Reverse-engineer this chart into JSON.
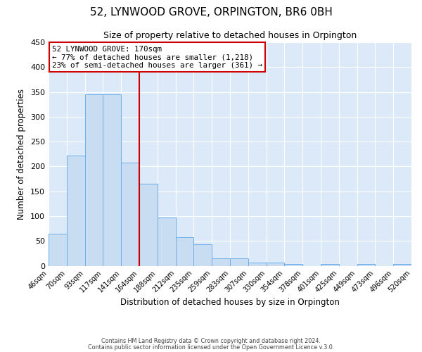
{
  "title": "52, LYNWOOD GROVE, ORPINGTON, BR6 0BH",
  "subtitle": "Size of property relative to detached houses in Orpington",
  "xlabel": "Distribution of detached houses by size in Orpington",
  "ylabel": "Number of detached properties",
  "bin_labels": [
    "46sqm",
    "70sqm",
    "93sqm",
    "117sqm",
    "141sqm",
    "164sqm",
    "188sqm",
    "212sqm",
    "235sqm",
    "259sqm",
    "283sqm",
    "307sqm",
    "330sqm",
    "354sqm",
    "378sqm",
    "401sqm",
    "425sqm",
    "449sqm",
    "473sqm",
    "496sqm",
    "520sqm"
  ],
  "bar_heights": [
    65,
    222,
    345,
    345,
    208,
    165,
    97,
    57,
    43,
    15,
    15,
    7,
    7,
    4,
    0,
    4,
    0,
    3,
    0,
    3
  ],
  "bar_color": "#c9ddf2",
  "bar_edge_color": "#6aaee8",
  "vline_x": 5,
  "vline_color": "#cc0000",
  "ylim": [
    0,
    450
  ],
  "yticks": [
    0,
    50,
    100,
    150,
    200,
    250,
    300,
    350,
    400,
    450
  ],
  "annotation_title": "52 LYNWOOD GROVE: 170sqm",
  "annotation_line1": "← 77% of detached houses are smaller (1,218)",
  "annotation_line2": "23% of semi-detached houses are larger (361) →",
  "annotation_box_color": "#ffffff",
  "annotation_box_edge": "#cc0000",
  "footer1": "Contains HM Land Registry data © Crown copyright and database right 2024.",
  "footer2": "Contains public sector information licensed under the Open Government Licence v.3.0.",
  "background_color": "#dce9f8",
  "title_fontsize": 11,
  "subtitle_fontsize": 9
}
